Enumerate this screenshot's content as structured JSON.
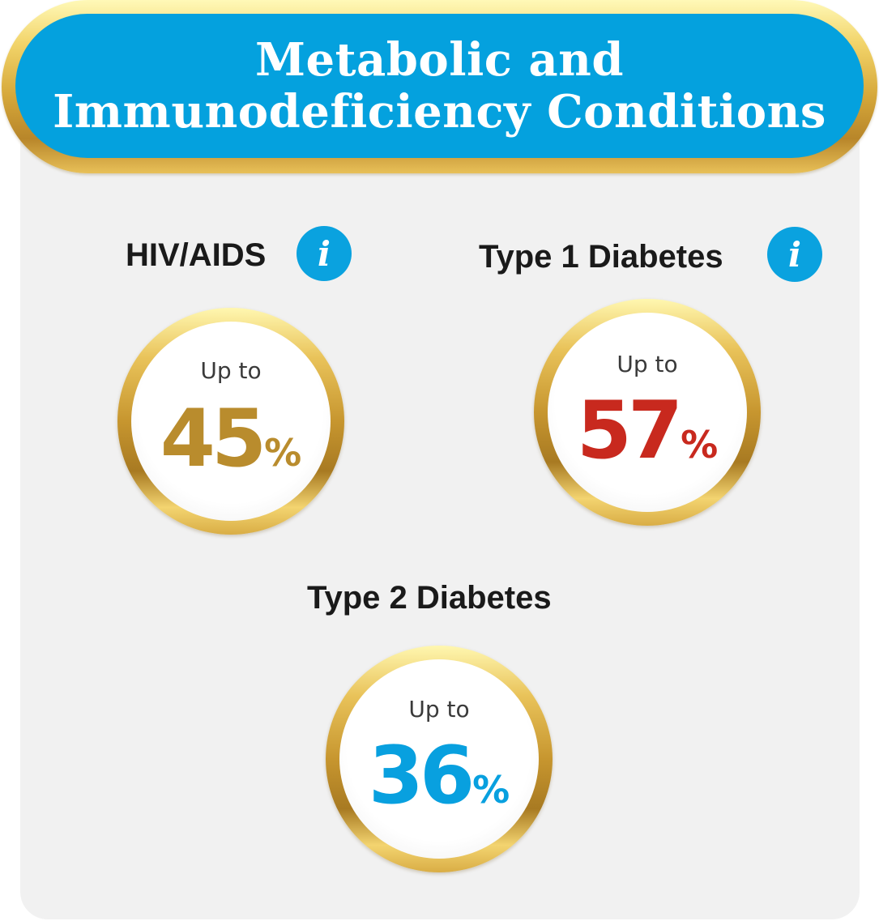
{
  "header": {
    "title_line1": "Metabolic and",
    "title_line2": "Immunodeficiency Conditions"
  },
  "conditions": [
    {
      "name": "HIV/AIDS",
      "has_info": true,
      "info_icon": "info-icon",
      "prefix": "Up to",
      "value": "45",
      "unit": "%",
      "color": "#b98c2d"
    },
    {
      "name": "Type 1  Diabetes",
      "has_info": true,
      "info_icon": "info-icon",
      "prefix": "Up to",
      "value": "57",
      "unit": "%",
      "color": "#c8291e"
    },
    {
      "name": "Type 2 Diabetes",
      "has_info": false,
      "prefix": "Up to",
      "value": "36",
      "unit": "%",
      "color": "#08a0df"
    }
  ],
  "colors": {
    "header_blue": "#04a1de",
    "info_blue": "#0aa2df",
    "gold": "#c7962f",
    "card_bg": "#f1f1f1"
  }
}
